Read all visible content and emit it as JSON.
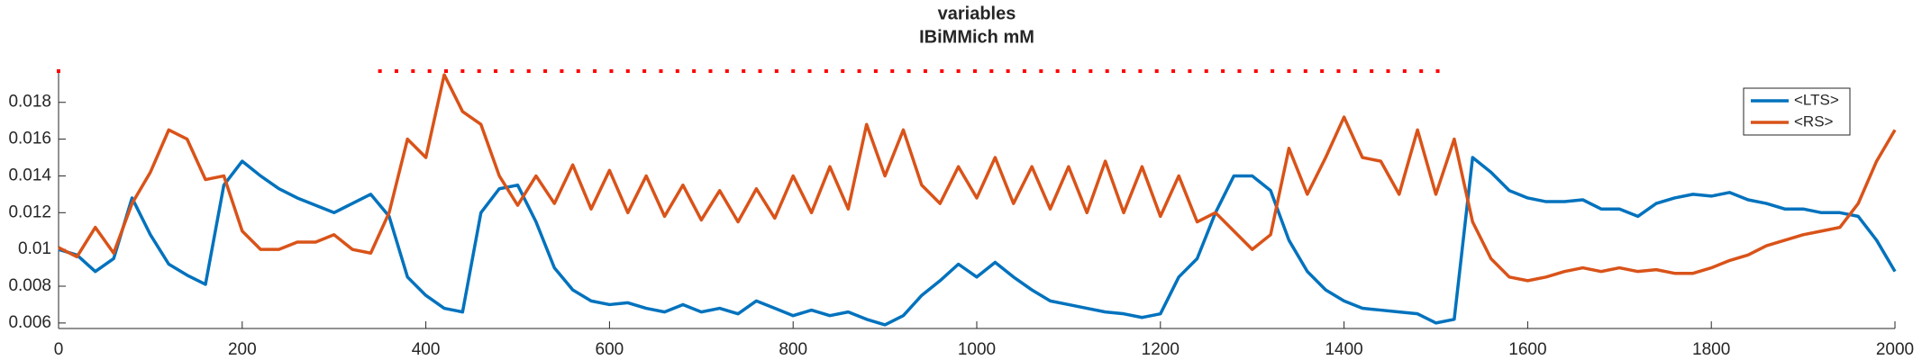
{
  "chart_data": {
    "type": "line",
    "title": "variables",
    "subtitle": "IBiMMich mM",
    "x": [
      0,
      20,
      40,
      60,
      80,
      100,
      120,
      140,
      160,
      180,
      200,
      220,
      240,
      260,
      280,
      300,
      320,
      340,
      360,
      380,
      400,
      420,
      440,
      460,
      480,
      500,
      520,
      540,
      560,
      580,
      600,
      620,
      640,
      660,
      680,
      700,
      720,
      740,
      760,
      780,
      800,
      820,
      840,
      860,
      880,
      900,
      920,
      940,
      960,
      980,
      1000,
      1020,
      1040,
      1060,
      1080,
      1100,
      1120,
      1140,
      1160,
      1180,
      1200,
      1220,
      1240,
      1260,
      1280,
      1300,
      1320,
      1340,
      1360,
      1380,
      1400,
      1420,
      1440,
      1460,
      1480,
      1500,
      1520,
      1540,
      1560,
      1580,
      1600,
      1620,
      1640,
      1660,
      1680,
      1700,
      1720,
      1740,
      1760,
      1780,
      1800,
      1820,
      1840,
      1860,
      1880,
      1900,
      1920,
      1940,
      1960,
      1980,
      2000
    ],
    "series": [
      {
        "name": "<LTS>",
        "color": "#0072bd",
        "values": [
          0.01,
          0.0097,
          0.0088,
          0.0095,
          0.0128,
          0.0108,
          0.0092,
          0.0086,
          0.0081,
          0.0135,
          0.0148,
          0.014,
          0.0133,
          0.0128,
          0.0124,
          0.012,
          0.0125,
          0.013,
          0.0118,
          0.0085,
          0.0075,
          0.0068,
          0.0066,
          0.012,
          0.0133,
          0.0135,
          0.0115,
          0.009,
          0.0078,
          0.0072,
          0.007,
          0.0071,
          0.0068,
          0.0066,
          0.007,
          0.0066,
          0.0068,
          0.0065,
          0.0072,
          0.0068,
          0.0064,
          0.0067,
          0.0064,
          0.0066,
          0.0062,
          0.0059,
          0.0064,
          0.0075,
          0.0083,
          0.0092,
          0.0085,
          0.0093,
          0.0085,
          0.0078,
          0.0072,
          0.007,
          0.0068,
          0.0066,
          0.0065,
          0.0063,
          0.0065,
          0.0085,
          0.0095,
          0.012,
          0.014,
          0.014,
          0.0132,
          0.0105,
          0.0088,
          0.0078,
          0.0072,
          0.0068,
          0.0067,
          0.0066,
          0.0065,
          0.006,
          0.0062,
          0.015,
          0.0142,
          0.0132,
          0.0128,
          0.0126,
          0.0126,
          0.0127,
          0.0122,
          0.0122,
          0.0118,
          0.0125,
          0.0128,
          0.013,
          0.0129,
          0.0131,
          0.0127,
          0.0125,
          0.0122,
          0.0122,
          0.012,
          0.012,
          0.0118,
          0.0105,
          0.0088
        ]
      },
      {
        "name": "<RS>",
        "color": "#d95319",
        "values": [
          0.0101,
          0.0096,
          0.0112,
          0.0098,
          0.0125,
          0.0142,
          0.0165,
          0.016,
          0.0138,
          0.014,
          0.011,
          0.01,
          0.01,
          0.0104,
          0.0104,
          0.0108,
          0.01,
          0.0098,
          0.012,
          0.016,
          0.015,
          0.0195,
          0.0175,
          0.0168,
          0.014,
          0.0124,
          0.014,
          0.0125,
          0.0146,
          0.0122,
          0.0143,
          0.012,
          0.014,
          0.0118,
          0.0135,
          0.0116,
          0.0132,
          0.0115,
          0.0133,
          0.0117,
          0.014,
          0.012,
          0.0145,
          0.0122,
          0.0168,
          0.014,
          0.0165,
          0.0135,
          0.0125,
          0.0145,
          0.0128,
          0.015,
          0.0125,
          0.0145,
          0.0122,
          0.0145,
          0.012,
          0.0148,
          0.012,
          0.0145,
          0.0118,
          0.014,
          0.0115,
          0.012,
          0.011,
          0.01,
          0.0108,
          0.0155,
          0.013,
          0.015,
          0.0172,
          0.015,
          0.0148,
          0.013,
          0.0165,
          0.013,
          0.016,
          0.0115,
          0.0095,
          0.0085,
          0.0083,
          0.0085,
          0.0088,
          0.009,
          0.0088,
          0.009,
          0.0088,
          0.0089,
          0.0087,
          0.0087,
          0.009,
          0.0094,
          0.0097,
          0.0102,
          0.0105,
          0.0108,
          0.011,
          0.0112,
          0.0125,
          0.0148,
          0.0165
        ]
      }
    ],
    "markers": {
      "color": "#ff0000",
      "y": 0.0197,
      "x": [
        0,
        350,
        368,
        386,
        404,
        422,
        440,
        458,
        476,
        494,
        512,
        530,
        548,
        566,
        584,
        602,
        620,
        638,
        656,
        674,
        692,
        710,
        728,
        746,
        764,
        782,
        800,
        818,
        836,
        854,
        872,
        890,
        908,
        926,
        944,
        962,
        980,
        998,
        1016,
        1034,
        1052,
        1070,
        1088,
        1106,
        1124,
        1142,
        1160,
        1178,
        1196,
        1214,
        1232,
        1250,
        1268,
        1286,
        1304,
        1322,
        1340,
        1358,
        1376,
        1394,
        1412,
        1430,
        1448,
        1466,
        1484,
        1502
      ]
    },
    "xlim": [
      0,
      2000
    ],
    "xticks": [
      0,
      200,
      400,
      600,
      800,
      1000,
      1200,
      1400,
      1600,
      1800,
      2000
    ],
    "ylim": [
      0.0057,
      0.0197
    ],
    "yticks": [
      0.006,
      0.008,
      0.01,
      0.012,
      0.014,
      0.016,
      0.018
    ],
    "grid": false,
    "legend": "northeast"
  }
}
